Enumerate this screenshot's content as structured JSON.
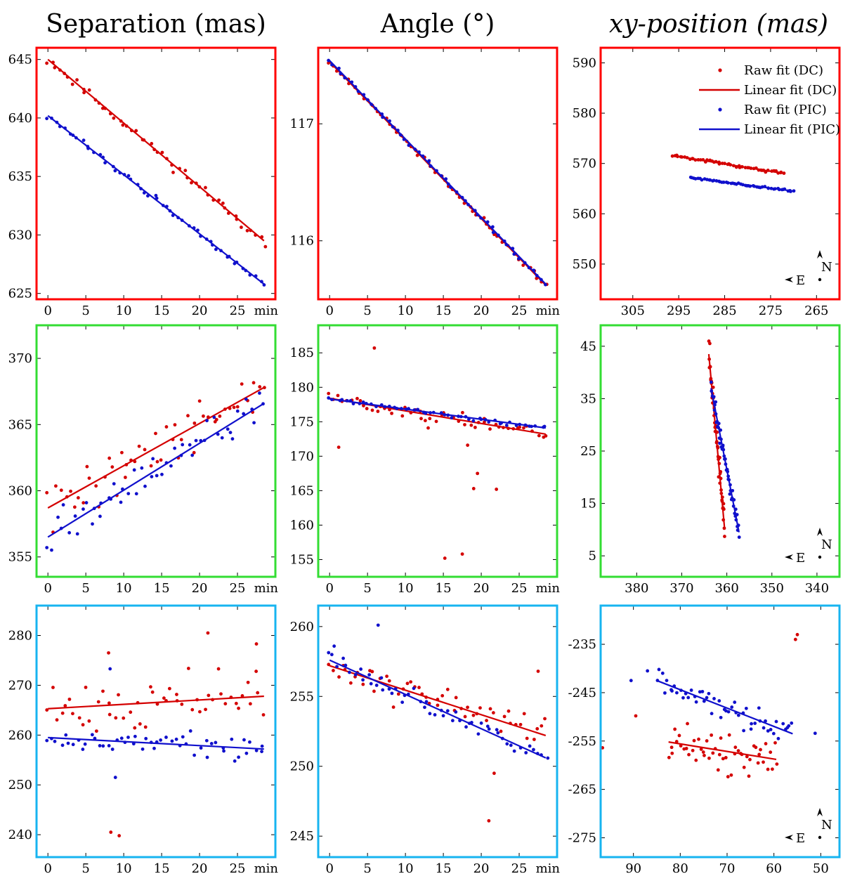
{
  "column_titles": [
    "Separation (mas)",
    "Angle (°)",
    "xy-position (mas)"
  ],
  "legend": {
    "entries": [
      "Raw fit (DC)",
      "Linear fit (DC)",
      "Raw fit (PIC)",
      "Linear fit (PIC)"
    ]
  },
  "compass": {
    "north": "N",
    "east": "E"
  },
  "colors": {
    "dc": "#d40000",
    "pic": "#1010cc",
    "row1_frame": "#ff0000",
    "row2_frame": "#33dd33",
    "row3_frame": "#17b4f0"
  },
  "chart_data": [
    {
      "type": "scatter",
      "row": 0,
      "col": 0,
      "title": "Separation (mas)",
      "xlabel": "min",
      "xlim": [
        -1.5,
        30
      ],
      "ylim": [
        624.5,
        646
      ],
      "xticks": [
        0,
        5,
        10,
        15,
        20,
        25
      ],
      "yticks": [
        625,
        630,
        635,
        640,
        645
      ],
      "series": [
        {
          "name": "Raw fit (DC)",
          "line": [
            [
              0,
              645
            ],
            [
              28.5,
              629.5
            ]
          ],
          "noise": 0.4,
          "seed": 11
        },
        {
          "name": "Raw fit (PIC)",
          "line": [
            [
              0,
              640.2
            ],
            [
              28.5,
              625.8
            ]
          ],
          "noise": 0.25,
          "seed": 12
        }
      ]
    },
    {
      "type": "scatter",
      "row": 0,
      "col": 1,
      "title": "Angle (°)",
      "xlabel": "min",
      "xlim": [
        -1.5,
        30
      ],
      "ylim": [
        115.5,
        117.65
      ],
      "xticks": [
        0,
        5,
        10,
        15,
        20,
        25
      ],
      "yticks": [
        116,
        117
      ],
      "series": [
        {
          "name": "Raw fit (DC)",
          "line": [
            [
              0,
              117.53
            ],
            [
              28.5,
              115.62
            ]
          ],
          "noise": 0.015,
          "seed": 21
        },
        {
          "name": "Raw fit (PIC)",
          "line": [
            [
              0,
              117.54
            ],
            [
              28.5,
              115.63
            ]
          ],
          "noise": 0.01,
          "seed": 22
        }
      ]
    },
    {
      "type": "scatter",
      "row": 0,
      "col": 2,
      "title": "xy-position (mas)",
      "xlabel": "",
      "xreversed": true,
      "xlim": [
        312,
        260
      ],
      "ylim": [
        543,
        593
      ],
      "xticks": [
        305,
        295,
        285,
        275,
        265
      ],
      "yticks": [
        550,
        560,
        570,
        580,
        590
      ],
      "series": [
        {
          "name": "Raw fit (DC)",
          "line": [
            [
              296.5,
              571.6
            ],
            [
              272,
              568
            ]
          ],
          "noise": 0.25,
          "seed": 31
        },
        {
          "name": "Raw fit (PIC)",
          "line": [
            [
              292.5,
              567.2
            ],
            [
              270,
              564.5
            ]
          ],
          "noise": 0.2,
          "seed": 32
        }
      ]
    },
    {
      "type": "scatter",
      "row": 1,
      "col": 0,
      "title": "Separation (mas)",
      "xlabel": "min",
      "xlim": [
        -1.5,
        30
      ],
      "ylim": [
        353.5,
        372.5
      ],
      "xticks": [
        0,
        5,
        10,
        15,
        20,
        25
      ],
      "yticks": [
        355,
        360,
        365,
        370
      ],
      "series": [
        {
          "name": "Raw fit (DC)",
          "line": [
            [
              0,
              358.7
            ],
            [
              28.5,
              367.8
            ]
          ],
          "noise": 2.0,
          "seed": 41
        },
        {
          "name": "Raw fit (PIC)",
          "line": [
            [
              0,
              356.5
            ],
            [
              28.5,
              366.6
            ]
          ],
          "noise": 1.3,
          "seed": 42
        }
      ]
    },
    {
      "type": "scatter",
      "row": 1,
      "col": 1,
      "title": "Angle (°)",
      "xlabel": "min",
      "xlim": [
        -1.5,
        30
      ],
      "ylim": [
        152.5,
        189
      ],
      "xticks": [
        0,
        5,
        10,
        15,
        20,
        25
      ],
      "yticks": [
        155,
        160,
        165,
        170,
        175,
        180,
        185
      ],
      "series": [
        {
          "name": "Raw fit (DC)",
          "line": [
            [
              0,
              178.4
            ],
            [
              28.5,
              173.2
            ]
          ],
          "noise": 1.0,
          "seed": 51,
          "outliers": [
            [
              1.2,
              171.3
            ],
            [
              5.9,
              185.7
            ],
            [
              15.2,
              155.2
            ],
            [
              17.5,
              155.8
            ],
            [
              18.2,
              171.6
            ],
            [
              19.5,
              167.5
            ],
            [
              19,
              165.3
            ],
            [
              22,
              165.2
            ],
            [
              13,
              174.1
            ]
          ]
        },
        {
          "name": "Raw fit (PIC)",
          "line": [
            [
              0,
              178.3
            ],
            [
              28.5,
              174.1
            ]
          ],
          "noise": 0.3,
          "seed": 52
        }
      ]
    },
    {
      "type": "scatter",
      "row": 1,
      "col": 2,
      "title": "xy-position (mas)",
      "xlabel": "",
      "xreversed": true,
      "xlim": [
        388,
        335
      ],
      "ylim": [
        1,
        49
      ],
      "xticks": [
        380,
        370,
        360,
        350,
        340
      ],
      "yticks": [
        5,
        15,
        25,
        35,
        45
      ],
      "series": [
        {
          "name": "Raw fit (DC)",
          "line": [
            [
              364,
              43.5
            ],
            [
              360.5,
              10.2
            ]
          ],
          "noise": 3.0,
          "seed": 61
        },
        {
          "name": "Raw fit (PIC)",
          "line": [
            [
              363.5,
              37
            ],
            [
              357.3,
              9.5
            ]
          ],
          "noise": 1.8,
          "seed": 62
        }
      ]
    },
    {
      "type": "scatter",
      "row": 2,
      "col": 0,
      "title": "Separation (mas)",
      "xlabel": "min",
      "xlim": [
        -1.5,
        30
      ],
      "ylim": [
        235.5,
        286
      ],
      "xticks": [
        0,
        5,
        10,
        15,
        20,
        25
      ],
      "yticks": [
        240,
        250,
        260,
        270,
        280
      ],
      "series": [
        {
          "name": "Raw fit (DC)",
          "line": [
            [
              0,
              265.3
            ],
            [
              28.5,
              267.8
            ]
          ],
          "noise": 5.0,
          "seed": 71,
          "outliers": [
            [
              8.3,
              240.5
            ],
            [
              9.4,
              239.8
            ],
            [
              8.0,
              276.5
            ],
            [
              21.1,
              280.5
            ],
            [
              27.5,
              278.3
            ]
          ]
        },
        {
          "name": "Raw fit (PIC)",
          "line": [
            [
              0,
              259.5
            ],
            [
              28.5,
              257.2
            ]
          ],
          "noise": 2.5,
          "seed": 72,
          "outliers": [
            [
              8.2,
              273.3
            ],
            [
              8.9,
              251.5
            ]
          ]
        }
      ]
    },
    {
      "type": "scatter",
      "row": 2,
      "col": 1,
      "title": "Angle (°)",
      "xlabel": "min",
      "xlim": [
        -1.5,
        30
      ],
      "ylim": [
        243.5,
        261.5
      ],
      "xticks": [
        0,
        5,
        10,
        15,
        20,
        25
      ],
      "yticks": [
        245,
        250,
        255,
        260
      ],
      "series": [
        {
          "name": "Raw fit (DC)",
          "line": [
            [
              0,
              257.2
            ],
            [
              28.5,
              252.2
            ]
          ],
          "noise": 1.2,
          "seed": 81,
          "outliers": [
            [
              21,
              246.1
            ],
            [
              21.7,
              249.5
            ],
            [
              27.5,
              256.8
            ]
          ]
        },
        {
          "name": "Raw fit (PIC)",
          "line": [
            [
              0,
              257.6
            ],
            [
              28.5,
              250.6
            ]
          ],
          "noise": 0.6,
          "seed": 82,
          "outliers": [
            [
              6.4,
              260.1
            ],
            [
              0.6,
              258.6
            ]
          ]
        }
      ]
    },
    {
      "type": "scatter",
      "row": 2,
      "col": 2,
      "title": "xy-position (mas)",
      "xlabel": "",
      "xreversed": true,
      "xlim": [
        97,
        46
      ],
      "ylim": [
        -279,
        -227
      ],
      "xticks": [
        90,
        80,
        70,
        60,
        50
      ],
      "yticks": [
        -235,
        -245,
        -255,
        -265,
        -275
      ],
      "series": [
        {
          "name": "Raw fit (DC)",
          "line": [
            [
              82.5,
              -255.2
            ],
            [
              59.5,
              -258.8
            ]
          ],
          "noise": 4.0,
          "seed": 91,
          "outliers": [
            [
              55,
              -233
            ],
            [
              55.4,
              -234
            ],
            [
              89.5,
              -249.8
            ],
            [
              96.6,
              -256.4
            ]
          ]
        },
        {
          "name": "Raw fit (PIC)",
          "line": [
            [
              85,
              -242.5
            ],
            [
              56,
              -253.5
            ]
          ],
          "noise": 3.0,
          "seed": 92,
          "outliers": [
            [
              51.2,
              -253.4
            ],
            [
              87,
              -240.5
            ],
            [
              90.5,
              -242.5
            ]
          ]
        }
      ]
    }
  ]
}
